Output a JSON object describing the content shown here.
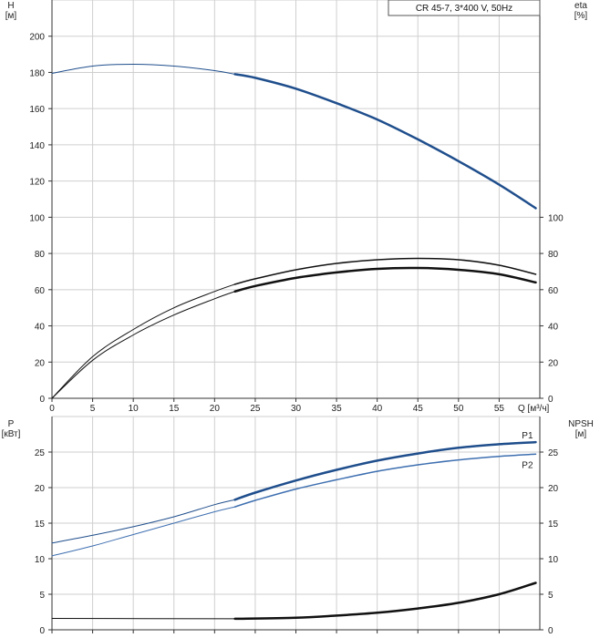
{
  "chart_title": "CR 45-7, 3*400 V, 50Hz",
  "colors": {
    "grid": "#cfcfcf",
    "axis": "#333333",
    "head": "#1f4e8c",
    "p1": "#1f4e8c",
    "p2": "#3e6fb0",
    "eta": "#111111",
    "npsh": "#111111",
    "text": "#222222"
  },
  "chart_data": [
    {
      "type": "line",
      "title": "",
      "xlabel": "Q [м³/ч]",
      "ylabel": "H\n[м]",
      "y2label": "eta\n[%]",
      "xlim": [
        0,
        60
      ],
      "ylim": [
        0,
        220
      ],
      "y2lim": [
        0,
        220
      ],
      "x_ticks": [
        0,
        5,
        10,
        15,
        20,
        25,
        30,
        35,
        40,
        45,
        50,
        55
      ],
      "y_ticks": [
        0,
        20,
        40,
        60,
        80,
        100,
        120,
        140,
        160,
        180,
        200
      ],
      "y2_ticks": [
        0,
        20,
        40,
        60,
        80,
        100
      ],
      "grid": true,
      "series": [
        {
          "axis": "left",
          "x": [
            0,
            5,
            10,
            15,
            20,
            22.5
          ],
          "y": [
            179.5,
            183.5,
            184.5,
            183.5,
            181,
            179
          ],
          "style": "thin"
        },
        {
          "axis": "left",
          "x": [
            22.5,
            25,
            30,
            35,
            40,
            45,
            50,
            55,
            59.5
          ],
          "y": [
            179,
            177,
            171,
            163,
            154,
            143,
            131,
            118,
            105
          ],
          "style": "bold"
        },
        {
          "axis": "right",
          "x": [
            0,
            5,
            10,
            15,
            20,
            22.5
          ],
          "y": [
            0,
            23,
            38,
            50,
            59,
            63
          ],
          "style": "thin"
        },
        {
          "axis": "right",
          "x": [
            22.5,
            25,
            30,
            35,
            40,
            45,
            50,
            55,
            59.5
          ],
          "y": [
            63,
            66,
            71,
            74.5,
            76.5,
            77.3,
            76.5,
            73.5,
            68.5
          ],
          "style": "bold"
        },
        {
          "axis": "left",
          "x": [
            0,
            5,
            10,
            15,
            20,
            22.5
          ],
          "y": [
            0,
            21,
            35,
            46,
            55,
            59
          ],
          "style": "thin"
        },
        {
          "axis": "left",
          "x": [
            22.5,
            25,
            30,
            35,
            40,
            45,
            50,
            55,
            59.5
          ],
          "y": [
            59,
            62,
            66.5,
            69.5,
            71.5,
            72,
            71,
            68.5,
            64
          ],
          "style": "bold"
        }
      ]
    },
    {
      "type": "line",
      "title": "",
      "xlabel": "",
      "ylabel": "P\n[кВт]",
      "y2label": "NPSH\n[м]",
      "xlim": [
        0,
        60
      ],
      "ylim": [
        0,
        30
      ],
      "y2lim": [
        0,
        30
      ],
      "y_ticks": [
        0,
        5,
        10,
        15,
        20,
        25
      ],
      "y2_ticks": [
        0,
        5,
        10,
        15,
        20,
        25
      ],
      "grid": true,
      "series": [
        {
          "name": "P1",
          "axis": "left",
          "x": [
            0,
            5,
            10,
            15,
            20,
            22.5
          ],
          "y": [
            12.2,
            13.3,
            14.5,
            15.9,
            17.6,
            18.3
          ],
          "style": "thin"
        },
        {
          "name": "P1",
          "axis": "left",
          "x": [
            22.5,
            25,
            30,
            35,
            40,
            45,
            50,
            55,
            59.5
          ],
          "y": [
            18.3,
            19.3,
            21.0,
            22.5,
            23.8,
            24.8,
            25.6,
            26.1,
            26.4
          ],
          "style": "bold",
          "label": "P1"
        },
        {
          "name": "P2",
          "axis": "left",
          "x": [
            0,
            5,
            10,
            15,
            20,
            22.5
          ],
          "y": [
            10.4,
            11.8,
            13.4,
            15.0,
            16.6,
            17.3
          ],
          "style": "thin"
        },
        {
          "name": "P2",
          "axis": "left",
          "x": [
            22.5,
            25,
            30,
            35,
            40,
            45,
            50,
            55,
            59.5
          ],
          "y": [
            17.3,
            18.2,
            19.8,
            21.1,
            22.3,
            23.2,
            23.9,
            24.4,
            24.7
          ],
          "style": "bold",
          "label": "P2"
        },
        {
          "axis": "right",
          "x": [
            0,
            22.5
          ],
          "y": [
            1.6,
            1.55
          ],
          "style": "thin"
        },
        {
          "axis": "right",
          "x": [
            22.5,
            30,
            35,
            40,
            45,
            50,
            55,
            59.5
          ],
          "y": [
            1.55,
            1.7,
            2.0,
            2.4,
            3.0,
            3.8,
            5.0,
            6.6
          ],
          "style": "bold"
        }
      ]
    }
  ]
}
